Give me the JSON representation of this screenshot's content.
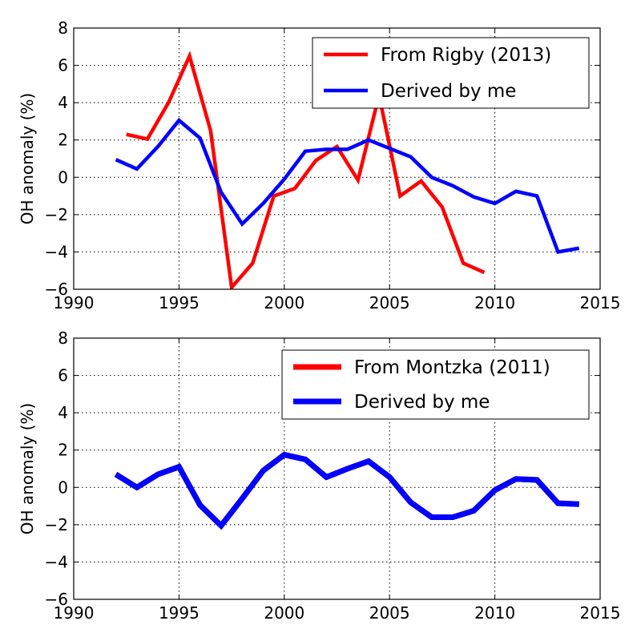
{
  "chart_data": [
    {
      "type": "line",
      "title": "",
      "xlabel": "",
      "ylabel": "OH anomaly (%)",
      "xlim": [
        1990,
        2015
      ],
      "ylim": [
        -6,
        8
      ],
      "xticks": [
        "1990",
        "1995",
        "2000",
        "2005",
        "2010",
        "2015"
      ],
      "yticks": [
        "−6",
        "−4",
        "−2",
        "0",
        "2",
        "4",
        "6",
        "8"
      ],
      "grid": true,
      "legend_position": "top-right",
      "series": [
        {
          "name": "From Rigby (2013)",
          "color": "#ff0000",
          "x": [
            1992.5,
            1993.5,
            1994.5,
            1995.5,
            1996.5,
            1997.5,
            1998.5,
            1999.5,
            2000.5,
            2001.5,
            2002.5,
            2003.5,
            2004.5,
            2005.5,
            2006.5,
            2007.5,
            2008.5,
            2009.5
          ],
          "y": [
            2.3,
            2.05,
            4.0,
            6.5,
            2.5,
            -5.9,
            -4.6,
            -1.0,
            -0.6,
            0.9,
            1.65,
            -0.15,
            4.4,
            -1.0,
            -0.2,
            -1.6,
            -4.6,
            -5.1
          ]
        },
        {
          "name": "Derived by me",
          "color": "#0000ff",
          "x": [
            1992,
            1993,
            1994,
            1995,
            1996,
            1997,
            1998,
            1999,
            2000,
            2001,
            2002,
            2003,
            2004,
            2005,
            2006,
            2007,
            2008,
            2009,
            2010,
            2011,
            2012,
            2013,
            2014
          ],
          "y": [
            0.95,
            0.45,
            1.65,
            3.05,
            2.1,
            -0.8,
            -2.5,
            -1.4,
            -0.1,
            1.4,
            1.5,
            1.5,
            2.0,
            1.55,
            1.1,
            0.0,
            -0.45,
            -1.05,
            -1.4,
            -0.75,
            -1.0,
            -4.0,
            -3.8
          ]
        }
      ]
    },
    {
      "type": "line",
      "title": "",
      "xlabel": "",
      "ylabel": "OH anomaly (%)",
      "xlim": [
        1990,
        2015
      ],
      "ylim": [
        -6,
        8
      ],
      "xticks": [
        "1990",
        "1995",
        "2000",
        "2005",
        "2010",
        "2015"
      ],
      "yticks": [
        "−6",
        "−4",
        "−2",
        "0",
        "2",
        "4",
        "6",
        "8"
      ],
      "grid": true,
      "legend_position": "top-right",
      "series": [
        {
          "name": "From Montzka (2011)",
          "color": "#ff0000",
          "x": [
            1992,
            1993,
            1994,
            1995,
            1996,
            1997,
            1998,
            1999,
            2000,
            2001,
            2002,
            2003,
            2004,
            2005,
            2006,
            2007,
            2008,
            2009,
            2010,
            2011,
            2012,
            2013,
            2014
          ],
          "y": [
            0.7,
            0.0,
            0.7,
            1.1,
            -0.95,
            -2.05,
            -0.6,
            0.9,
            1.75,
            1.5,
            0.55,
            1.0,
            1.4,
            0.55,
            -0.8,
            -1.6,
            -1.6,
            -1.25,
            -0.15,
            0.45,
            0.4,
            -0.85,
            -0.9
          ]
        },
        {
          "name": "Derived by me",
          "color": "#0000ff",
          "x": [
            1992,
            1993,
            1994,
            1995,
            1996,
            1997,
            1998,
            1999,
            2000,
            2001,
            2002,
            2003,
            2004,
            2005,
            2006,
            2007,
            2008,
            2009,
            2010,
            2011,
            2012,
            2013,
            2014
          ],
          "y": [
            0.7,
            0.0,
            0.7,
            1.1,
            -0.95,
            -2.05,
            -0.6,
            0.9,
            1.75,
            1.5,
            0.55,
            1.0,
            1.4,
            0.55,
            -0.8,
            -1.6,
            -1.6,
            -1.25,
            -0.15,
            0.45,
            0.4,
            -0.85,
            -0.9
          ]
        }
      ]
    }
  ]
}
